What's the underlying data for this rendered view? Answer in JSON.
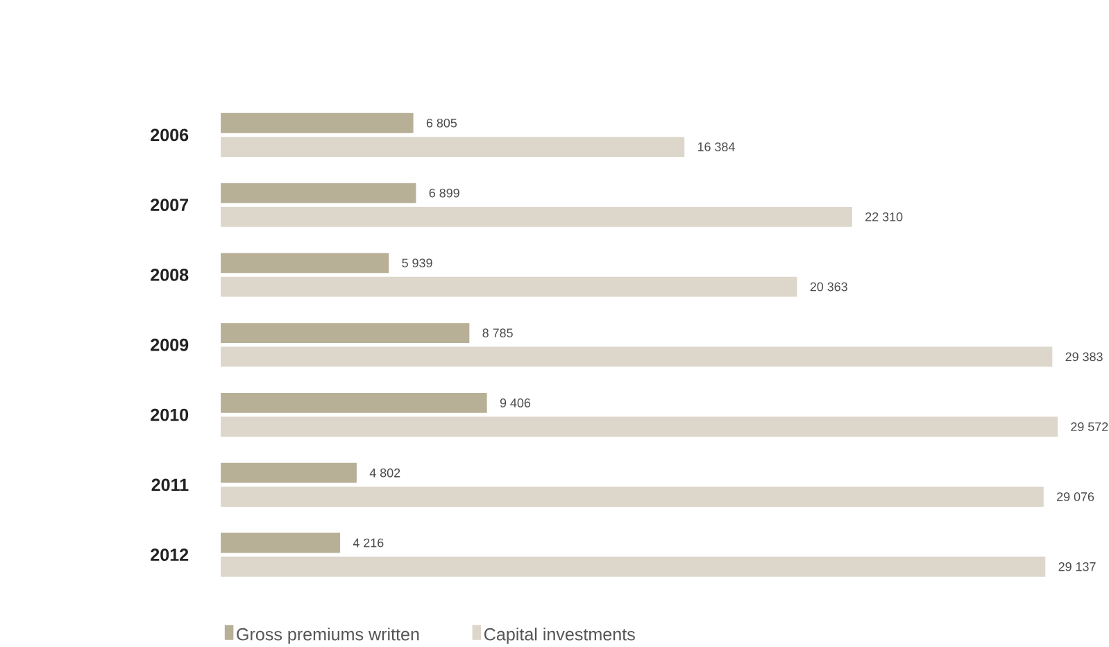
{
  "chart_data": {
    "type": "bar",
    "orientation": "horizontal",
    "legend": "bottom",
    "categories": [
      "2006",
      "2007",
      "2008",
      "2009",
      "2010",
      "2011",
      "2012"
    ],
    "series": [
      {
        "name": "Gross premiums written",
        "color": "#b8af97",
        "values": [
          6805,
          6899,
          5939,
          8785,
          9406,
          4802,
          4216
        ],
        "value_labels": [
          "6 805",
          "6 899",
          "5 939",
          "8 785",
          "9 406",
          "4 802",
          "4 216"
        ]
      },
      {
        "name": "Capital investments",
        "color": "#ddd6ca",
        "values": [
          16384,
          22310,
          20363,
          29383,
          29572,
          29076,
          29137
        ],
        "value_labels": [
          "16 384",
          "22 310",
          "20 363",
          "29 383",
          "29 572",
          "29 076",
          "29 137"
        ]
      }
    ]
  }
}
